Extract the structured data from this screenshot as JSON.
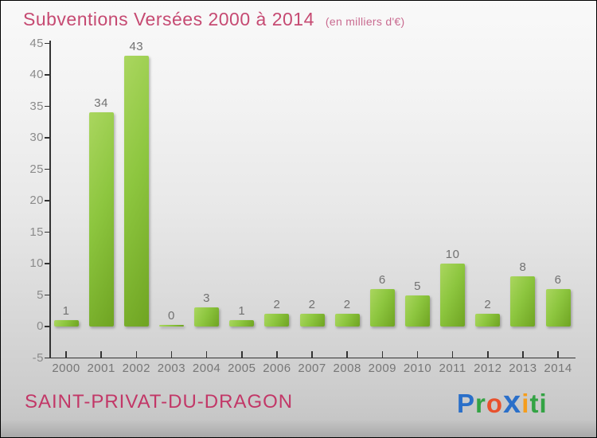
{
  "header": {
    "title": "Subventions Versées 2000 à 2014",
    "subtitle": "(en milliers d'€)",
    "title_color": "#c64a72",
    "subtitle_color": "#c96b90"
  },
  "chart_data": {
    "type": "bar",
    "title": "Subventions Versées 2000 à 2014",
    "subtitle": "(en milliers d'€)",
    "categories": [
      "2000",
      "2001",
      "2002",
      "2003",
      "2004",
      "2005",
      "2006",
      "2007",
      "2008",
      "2009",
      "2010",
      "2011",
      "2012",
      "2013",
      "2014"
    ],
    "values": [
      1,
      34,
      43,
      0,
      3,
      1,
      2,
      2,
      2,
      6,
      5,
      10,
      2,
      8,
      6
    ],
    "xlabel": "",
    "ylabel": "",
    "ylim": [
      -5,
      45
    ],
    "ytick_step": 5,
    "grid": false,
    "legend": false,
    "bar_color": "#8dc63f",
    "bar_gradient_light": "#aad65f",
    "bar_gradient_dark": "#6fa422",
    "axis_color": "#333333",
    "ytick_label_color": "#8b8b8b",
    "xtick_label_color": "#767676",
    "value_label_color": "#717171"
  },
  "footer": {
    "location": "SAINT-PRIVAT-DU-DRAGON",
    "location_color": "#c23767"
  },
  "logo": {
    "name": "Proxiti",
    "letters": [
      {
        "ch": "P",
        "color": "#2a6fc9"
      },
      {
        "ch": "r",
        "color": "#33a344"
      },
      {
        "ch": "o",
        "color": "#e8512d"
      },
      {
        "ch": "x",
        "color": "#2a6fc9",
        "bold": true
      },
      {
        "ch": "i",
        "color": "#f59d1c"
      },
      {
        "ch": "t",
        "color": "#33a344"
      },
      {
        "ch": "i",
        "color": "#33a344"
      }
    ]
  }
}
